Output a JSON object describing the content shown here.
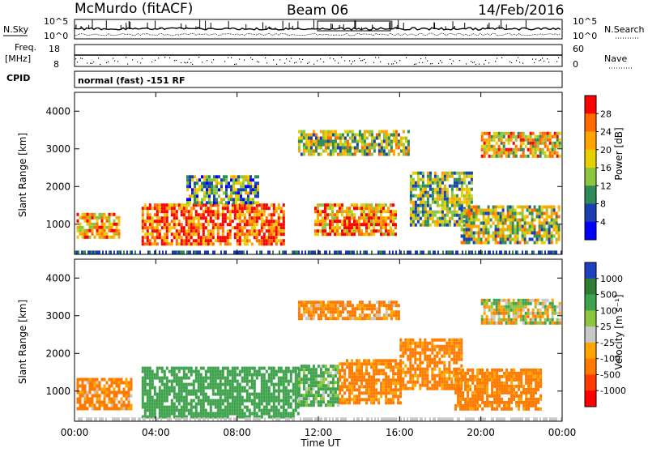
{
  "header": {
    "station": "McMurdo (fitACF)",
    "beam": "Beam 06",
    "date": "14/Feb/2016"
  },
  "strip": {
    "nsky_label": "N.Sky",
    "nsky_ticks": [
      "10^5",
      "10^0"
    ],
    "nsearch_label": "N.Search",
    "nsearch_ticks": [
      "10^5",
      "10^0"
    ],
    "freq_label": [
      "Freq.",
      "[MHz]"
    ],
    "freq_ticks": [
      "18",
      "8"
    ],
    "nave_label": "Nave",
    "nave_ticks": [
      "60",
      "0"
    ],
    "cpid_label": "CPID",
    "cpid_text": "normal (fast) -151 RF"
  },
  "panels": [
    {
      "ylabel": "Slant Range [km]",
      "ylim": [
        200,
        4500
      ],
      "yticks": [
        "4000",
        "3000",
        "2000",
        "1000"
      ],
      "colorbar": {
        "label": "Power [dB]",
        "ticks": [
          "28",
          "24",
          "20",
          "16",
          "12",
          "8",
          "4"
        ],
        "colors": [
          "#ff0000",
          "#ff6a00",
          "#ffa500",
          "#e8d000",
          "#8cc63f",
          "#2e8b57",
          "#1a3fb0",
          "#0000ff"
        ]
      }
    },
    {
      "ylabel": "Slant Range [km]",
      "ylim": [
        200,
        4500
      ],
      "yticks": [
        "4000",
        "3000",
        "2000",
        "1000"
      ],
      "colorbar": {
        "label": "Velocity [m s⁻¹]",
        "ticks": [
          "1000",
          "500",
          "100",
          "25",
          "-25",
          "-100",
          "-500",
          "-1000"
        ],
        "colors": [
          "#2040c0",
          "#2e7d32",
          "#3fa34d",
          "#8cc63f",
          "#c8c8c8",
          "#ffa500",
          "#ff7a00",
          "#ff3b00",
          "#ff0000"
        ]
      }
    }
  ],
  "xaxis": {
    "label": "Time UT",
    "ticks": [
      "00:00",
      "04:00",
      "08:00",
      "12:00",
      "16:00",
      "20:00",
      "00:00"
    ]
  },
  "chart_data": [
    {
      "type": "heatmap",
      "title": "Beam 06",
      "xlabel": "Time UT",
      "ylabel": "Slant Range [km]",
      "x_range_hours": [
        0,
        24
      ],
      "ylim": [
        200,
        4500
      ],
      "color_metric": "Power [dB]",
      "regions": [
        {
          "t0": 0.1,
          "t1": 2.2,
          "r0": 650,
          "r1": 1300,
          "value": 22
        },
        {
          "t0": 3.3,
          "t1": 10.3,
          "r0": 450,
          "r1": 1550,
          "value": 27
        },
        {
          "t0": 11.8,
          "t1": 15.8,
          "r0": 750,
          "r1": 1550,
          "value": 24
        },
        {
          "t0": 16.5,
          "t1": 19.5,
          "r0": 1000,
          "r1": 2400,
          "value": 14
        },
        {
          "t0": 19.0,
          "t1": 23.9,
          "r0": 500,
          "r1": 1500,
          "value": 16
        },
        {
          "t0": 11.0,
          "t1": 16.5,
          "r0": 2850,
          "r1": 3500,
          "value": 16
        },
        {
          "t0": 20.0,
          "t1": 23.9,
          "r0": 2800,
          "r1": 3450,
          "value": 20
        },
        {
          "t0": 5.5,
          "t1": 9.0,
          "r0": 1600,
          "r1": 2300,
          "value": 12
        }
      ]
    },
    {
      "type": "heatmap",
      "title": "Beam 06",
      "xlabel": "Time UT",
      "ylabel": "Slant Range [km]",
      "x_range_hours": [
        0,
        24
      ],
      "ylim": [
        200,
        4500
      ],
      "color_metric": "Velocity [m s⁻¹]",
      "regions": [
        {
          "t0": 0.1,
          "t1": 2.8,
          "r0": 500,
          "r1": 1350,
          "value": -150
        },
        {
          "t0": 3.3,
          "t1": 11.0,
          "r0": 350,
          "r1": 1650,
          "value": 300
        },
        {
          "t0": 11.0,
          "t1": 13.0,
          "r0": 650,
          "r1": 1700,
          "value": 150
        },
        {
          "t0": 13.0,
          "t1": 16.0,
          "r0": 700,
          "r1": 1850,
          "value": -200
        },
        {
          "t0": 16.0,
          "t1": 19.0,
          "r0": 1100,
          "r1": 2400,
          "value": -200
        },
        {
          "t0": 18.7,
          "t1": 22.9,
          "r0": 550,
          "r1": 1600,
          "value": -200
        },
        {
          "t0": 20.0,
          "t1": 23.9,
          "r0": 2800,
          "r1": 3450,
          "value": 0
        },
        {
          "t0": 11.0,
          "t1": 16.0,
          "r0": 2900,
          "r1": 3400,
          "value": -150
        }
      ]
    }
  ]
}
